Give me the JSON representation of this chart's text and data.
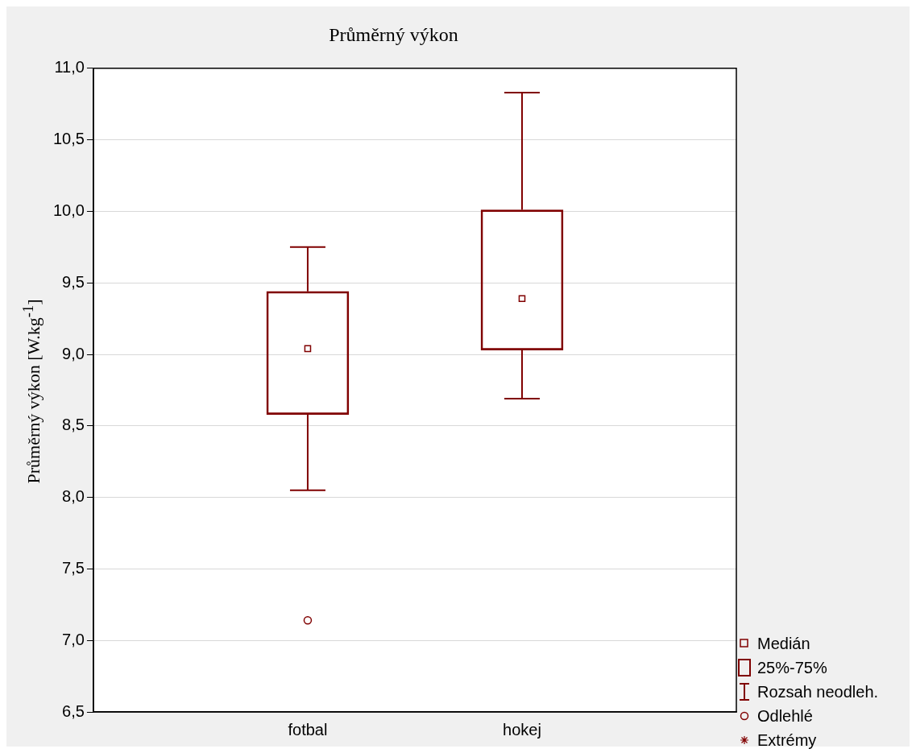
{
  "chart_data": {
    "type": "box",
    "title": "Průměrný výkon",
    "ylabel": "Průměrný výkon [W.kg$^{-1}$]",
    "categories": [
      "fotbal",
      "hokej"
    ],
    "boxes": [
      {
        "low": 8.05,
        "q1": 8.58,
        "median": 9.04,
        "q3": 9.44,
        "high": 9.75,
        "outliers": [
          7.14
        ]
      },
      {
        "low": 8.69,
        "q1": 9.03,
        "median": 9.39,
        "q3": 10.01,
        "high": 10.83
      }
    ],
    "color": "#800000",
    "ylim": [
      6.5,
      11.0
    ],
    "yticks": [
      {
        "value": 6.5,
        "label": "6,5"
      },
      {
        "value": 7.0,
        "label": "7,0"
      },
      {
        "value": 7.5,
        "label": "7,5"
      },
      {
        "value": 8.0,
        "label": "8,0"
      },
      {
        "value": 8.5,
        "label": "8,5"
      },
      {
        "value": 9.0,
        "label": "9,0"
      },
      {
        "value": 9.5,
        "label": "9,5"
      },
      {
        "value": 10.0,
        "label": "10,0"
      },
      {
        "value": 10.5,
        "label": "10,5"
      },
      {
        "value": 11.0,
        "label": "11,0"
      }
    ],
    "grid": "y",
    "annotations": [
      "Medián",
      "25%-75%",
      "Rozsah neodleh.",
      "Odlehlé",
      "Extrémy"
    ]
  }
}
